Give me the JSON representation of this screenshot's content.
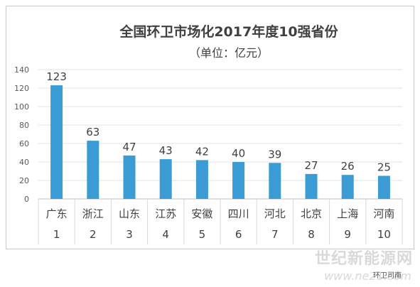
{
  "chart_data": {
    "type": "bar",
    "title": "全国环卫市场化2017年度10强省份",
    "subtitle": "（单位：亿元）",
    "categories": [
      "广东",
      "浙江",
      "山东",
      "江苏",
      "安徽",
      "四川",
      "河北",
      "北京",
      "上海",
      "河南"
    ],
    "ranks": [
      "1",
      "2",
      "3",
      "4",
      "5",
      "6",
      "7",
      "8",
      "9",
      "10"
    ],
    "values": [
      123,
      63,
      47,
      43,
      42,
      40,
      39,
      27,
      26,
      25
    ],
    "data_labels": [
      "123",
      "63",
      "47",
      "43",
      "42",
      "40",
      "39",
      "27",
      "26",
      "25"
    ],
    "ylim": [
      0,
      140
    ],
    "yticks": [
      "0",
      "20",
      "40",
      "60",
      "80",
      "100",
      "120",
      "140"
    ],
    "grid": true,
    "bar_color": "#3a9bd5"
  },
  "watermark": {
    "main": "世纪新能源网",
    "url": "www.ne21.com",
    "sub": "环卫司南"
  }
}
